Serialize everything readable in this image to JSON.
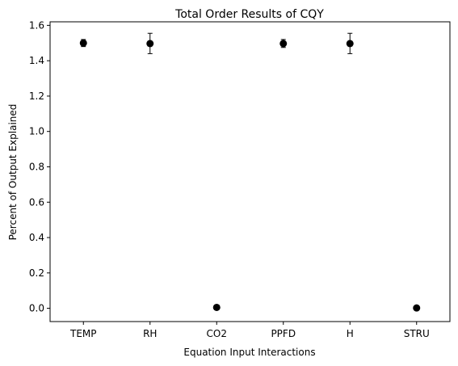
{
  "chart_data": {
    "type": "scatter",
    "title": "Total Order Results of CQY",
    "xlabel": "Equation Input Interactions",
    "ylabel": "Percent of Output Explained",
    "categories": [
      "TEMP",
      "RH",
      "CO2",
      "PPFD",
      "H",
      "STRU"
    ],
    "values": [
      1.5,
      1.497,
      0.005,
      1.497,
      1.497,
      0.002
    ],
    "error_low": [
      1.48,
      1.44,
      0.0,
      1.475,
      1.44,
      0.0
    ],
    "error_high": [
      1.52,
      1.555,
      0.01,
      1.52,
      1.555,
      0.004
    ],
    "ylim": [
      -0.075,
      1.62
    ],
    "yticks": [
      0.0,
      0.2,
      0.4,
      0.6,
      0.8,
      1.0,
      1.2,
      1.4,
      1.6
    ],
    "grid": false,
    "marker_color": "#000000"
  }
}
